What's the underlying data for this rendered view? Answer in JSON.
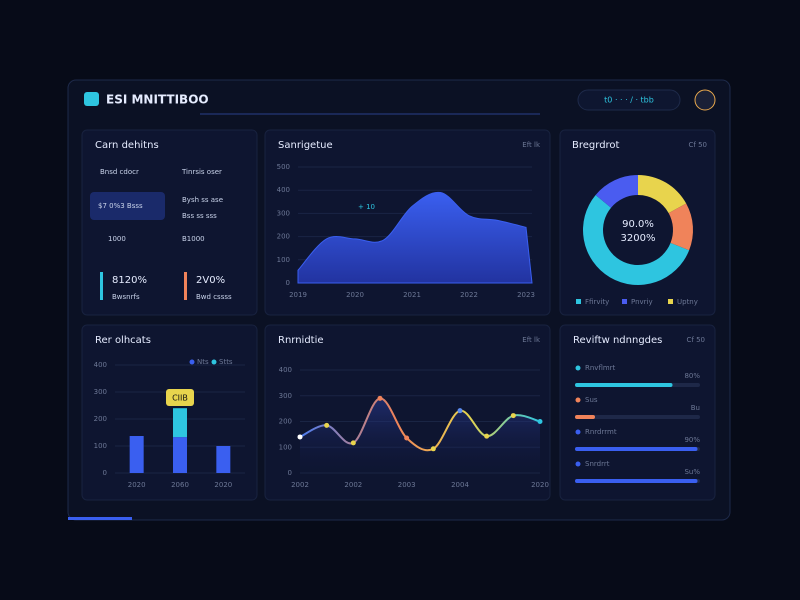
{
  "header": {
    "title": "ESI MNITTIBOO",
    "status": "t0 · · · / · tbb"
  },
  "stats": {
    "title": "Carn dehitns",
    "items": [
      "Bnsd cdocr",
      "Tinrsis oser",
      "$7 0%3 Bsss",
      "Bysh ss ase",
      "Bss ss sss",
      "1000",
      "B1000",
      "8120%",
      "Bwsnrfs",
      "2V0%",
      "Bwd cssss"
    ]
  },
  "progress": {
    "title": "Reviftw ndnngdes",
    "tag": "Cf 50",
    "items": [
      {
        "label": "Rnvflmrt",
        "value": 78,
        "side": "80%",
        "color": "#2ec5e0"
      },
      {
        "label": "Sus",
        "value": 16,
        "side": "Bu",
        "color": "#f0835a"
      },
      {
        "label": "Rnrdrrmt",
        "value": 98,
        "side": "90%",
        "color": "#3a5ff0"
      },
      {
        "label": "Snrdrrt",
        "value": 98,
        "side": "Su%",
        "color": "#3a5ff0"
      }
    ]
  },
  "chart_data": [
    {
      "type": "area",
      "title": "Sanrigetue",
      "tag": "Eft lk",
      "color": "#3a5ff0",
      "categories": [
        "2019",
        null,
        "2020",
        null,
        "2021",
        null,
        "2022",
        null,
        "2023"
      ],
      "values": [
        55,
        190,
        190,
        185,
        330,
        390,
        290,
        270,
        240
      ],
      "ylim": [
        0,
        500
      ],
      "yticks": [
        0,
        100,
        200,
        300,
        400,
        500
      ],
      "annotation": "+ 10"
    },
    {
      "type": "pie",
      "title": "Bregrdrot",
      "tag": "Cf 50",
      "center": [
        "90.0%",
        "3200%"
      ],
      "categories": [
        "Ffirvity",
        "Pnvriy",
        "Uptny",
        null
      ],
      "values": [
        55,
        14,
        17,
        14
      ],
      "colors": [
        "#2ec5e0",
        "#4a5cf0",
        "#e8d44d",
        "#f0835a"
      ]
    },
    {
      "type": "bar",
      "title": "Rer olhcats",
      "categories": [
        "2020",
        "2060",
        "2020"
      ],
      "series": [
        {
          "name": "Nts",
          "color": "#3a5ff0",
          "values": [
            137,
            133,
            100
          ]
        },
        {
          "name": "Stts",
          "color": "#2ec5e0",
          "values": [
            0,
            107,
            0
          ]
        }
      ],
      "ylim": [
        0,
        400
      ],
      "yticks": [
        0,
        100,
        200,
        300,
        400
      ],
      "annotation": "CIIB"
    },
    {
      "type": "line",
      "title": "Rnrnidtie",
      "tag": "Eft lk",
      "color": "#5b8cf0",
      "categories": [
        "2002",
        null,
        "2002",
        null,
        "2003",
        null,
        "2004",
        null,
        null,
        "2020"
      ],
      "values": [
        140,
        185,
        117,
        290,
        136,
        94,
        242,
        143,
        223,
        200
      ],
      "ylim": [
        0,
        400
      ],
      "yticks": [
        0,
        100,
        200,
        300,
        400
      ]
    }
  ]
}
